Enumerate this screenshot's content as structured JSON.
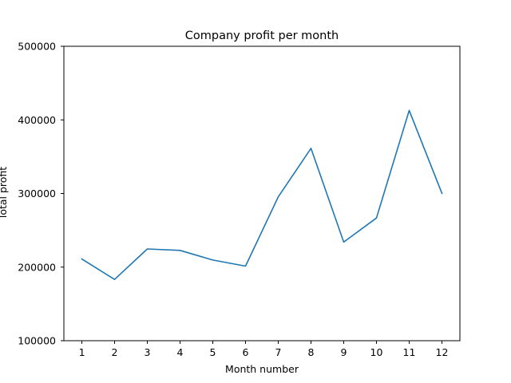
{
  "chart_data": {
    "type": "line",
    "title": "Company profit per month",
    "xlabel": "Month number",
    "ylabel": "Total profit",
    "x": [
      1,
      2,
      3,
      4,
      5,
      6,
      7,
      8,
      9,
      10,
      11,
      12
    ],
    "x_tick_labels": [
      "1",
      "2",
      "3",
      "4",
      "5",
      "6",
      "7",
      "8",
      "9",
      "10",
      "11",
      "12"
    ],
    "y_tick_values": [
      100000,
      200000,
      300000,
      400000,
      500000
    ],
    "y_tick_labels": [
      "100000",
      "200000",
      "300000",
      "400000",
      "500000"
    ],
    "ylim": [
      100000,
      500000
    ],
    "xlim": [
      0.45,
      12.55
    ],
    "grid": false,
    "series": [
      {
        "values": [
          211000,
          183300,
          224700,
          222700,
          209600,
          201400,
          295500,
          361400,
          234000,
          266700,
          412800,
          300200
        ],
        "color": "#1f77b4"
      }
    ]
  }
}
